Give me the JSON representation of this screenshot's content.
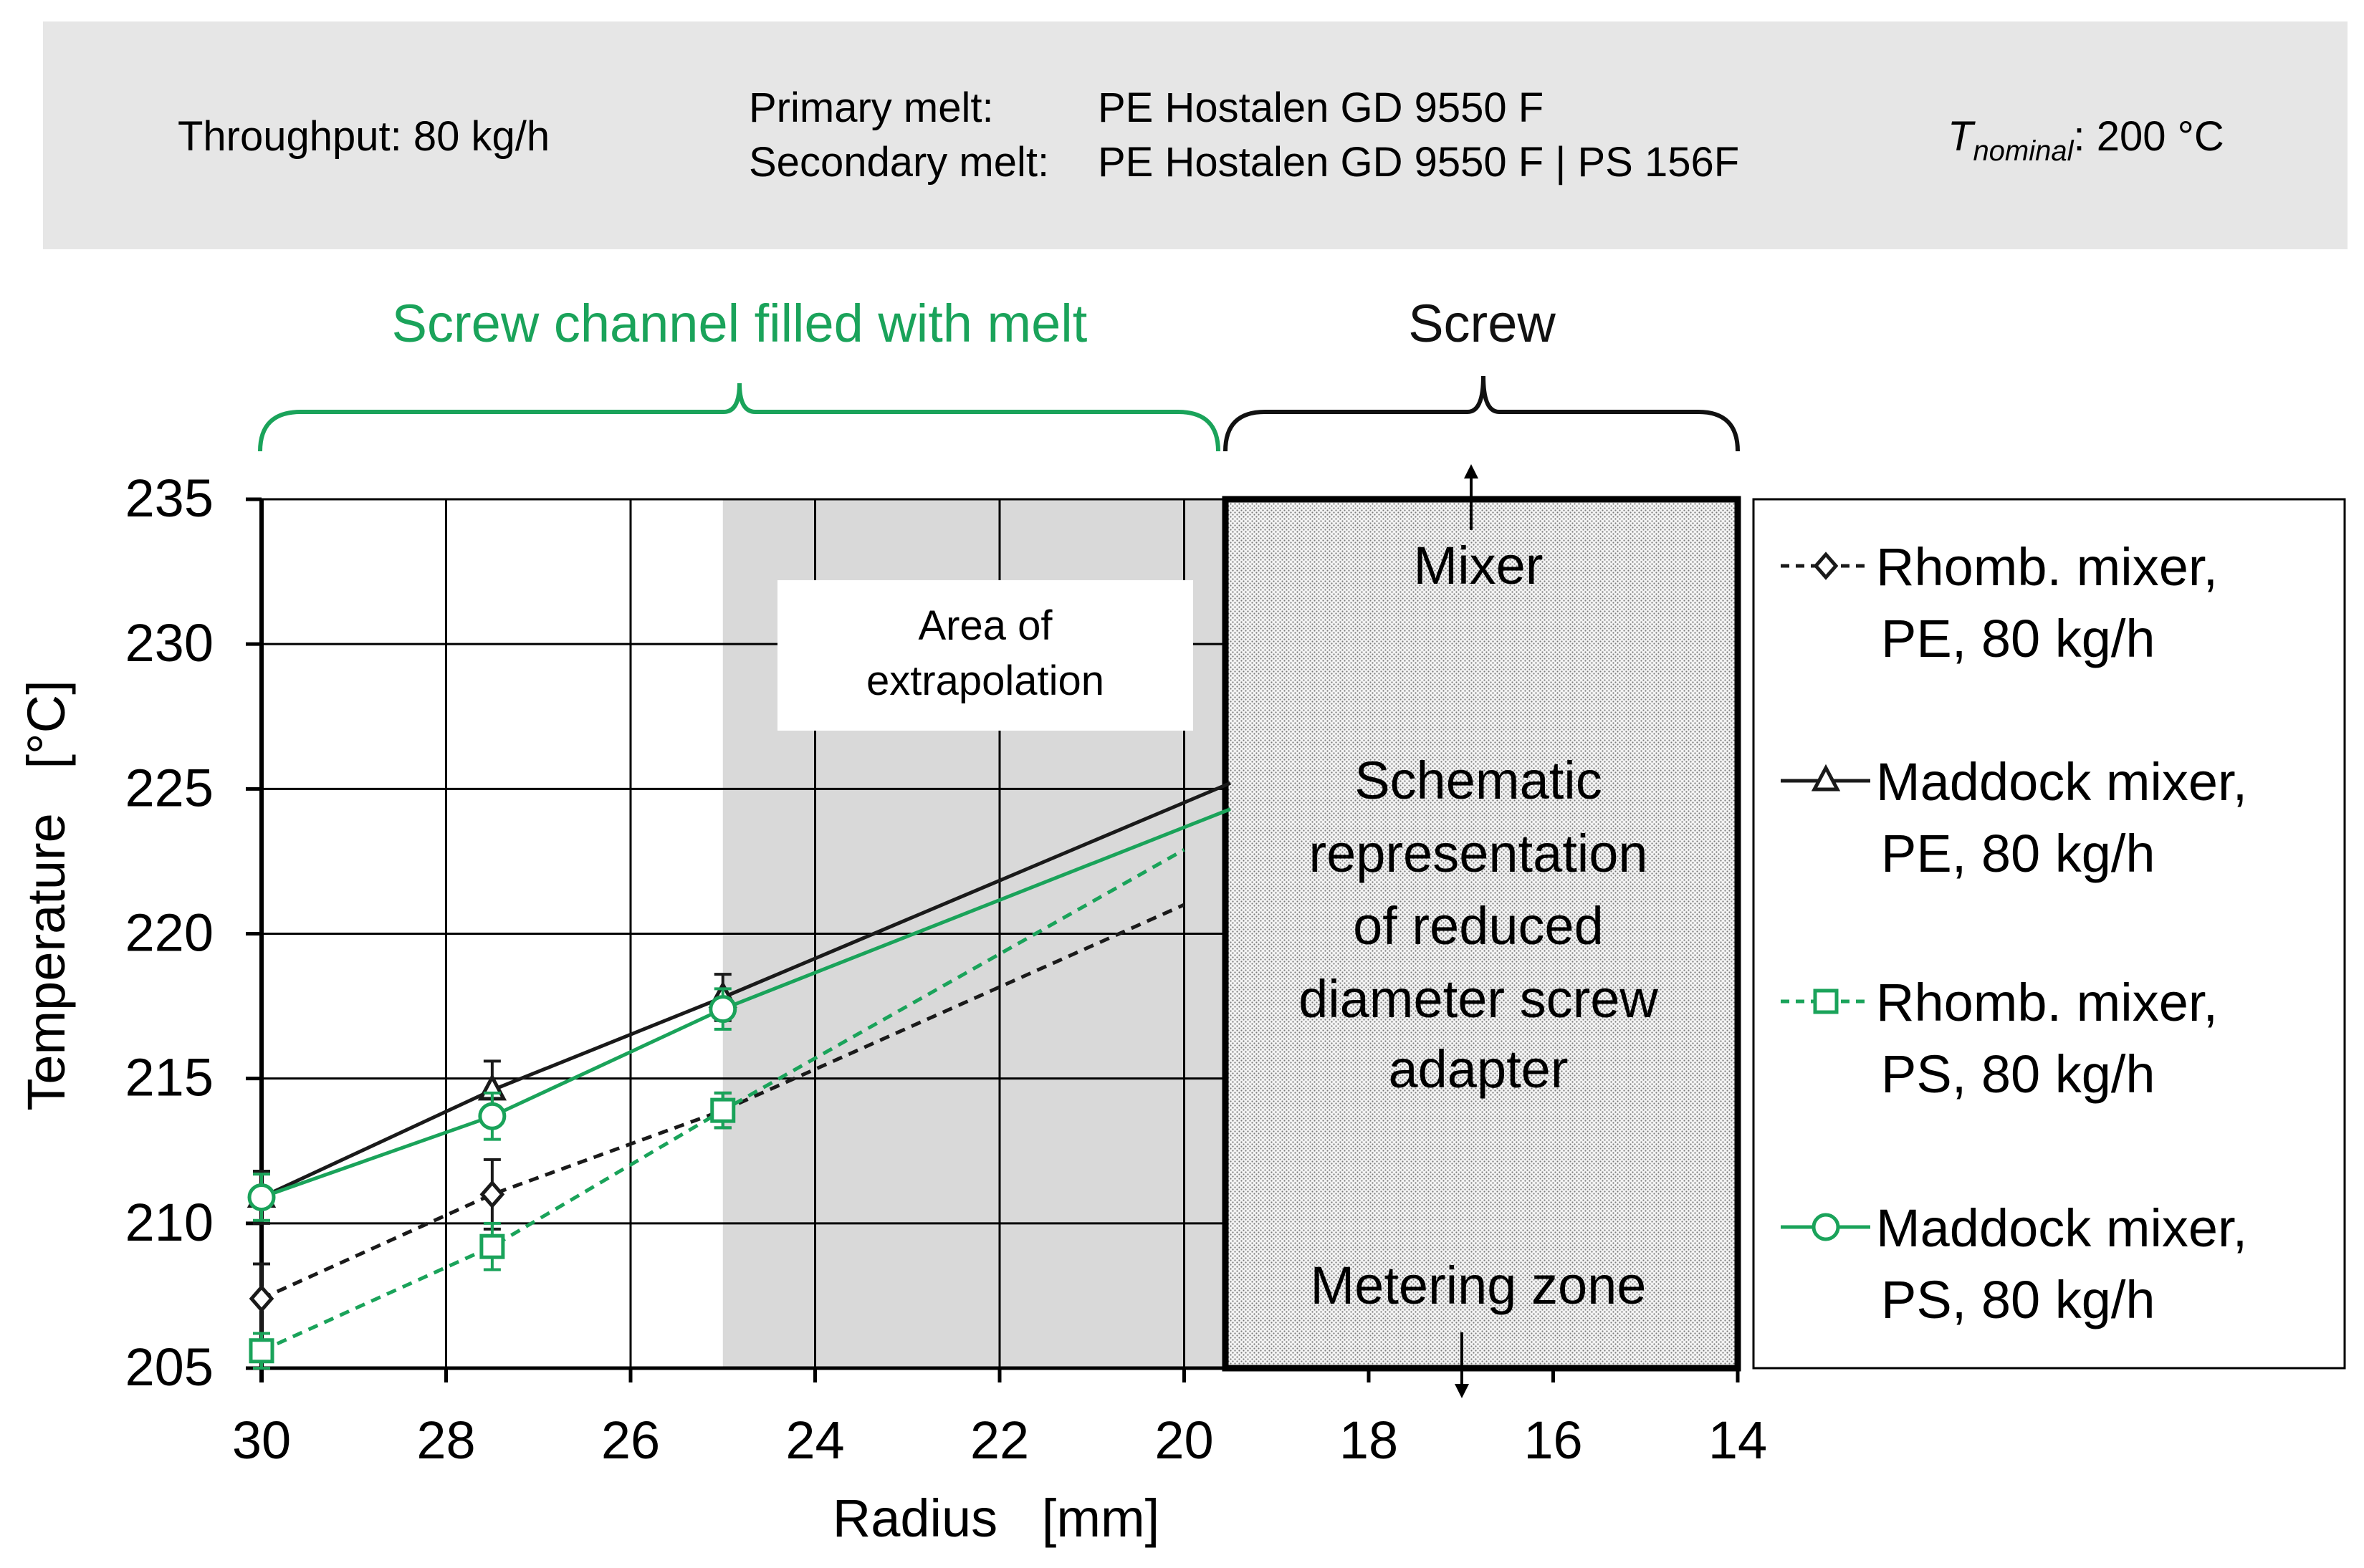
{
  "header": {
    "throughput": "Throughput: 80 kg/h",
    "primary_label": "Primary melt:",
    "primary_value": "PE Hostalen GD 9550 F",
    "secondary_label": "Secondary melt:",
    "secondary_value": "PE Hostalen GD 9550 F | PS 156F",
    "tnominal_symbol": "T",
    "tnominal_subscript": "nominal",
    "tnominal_value": ": 200 °C"
  },
  "regions": {
    "screw_channel_label": "Screw channel filled with melt",
    "screw_label": "Screw",
    "extrapolation_line1": "Area of",
    "extrapolation_line2": "extrapolation",
    "mixer_label": "Mixer",
    "metering_label": "Metering zone",
    "schematic_lines": [
      "Schematic",
      "representation",
      "of reduced",
      "diameter screw",
      "adapter"
    ]
  },
  "colors": {
    "black_series": "#1a1a1a",
    "green_series": "#1aa35a",
    "extrapolation_fill": "#d9d9d9",
    "header_fill": "#e6e6e6"
  },
  "chart_data": {
    "type": "line",
    "xlabel": "Radius   [mm]",
    "ylabel": "Temperature   [°C]",
    "xlim": [
      30,
      14
    ],
    "ylim": [
      205,
      235
    ],
    "x_reversed": true,
    "xticks": [
      30,
      28,
      26,
      24,
      22,
      20,
      18,
      16,
      14
    ],
    "yticks": [
      205,
      210,
      215,
      220,
      225,
      230,
      235
    ],
    "grid": true,
    "legend_position": "right",
    "extrapolation_range": [
      25,
      19.5
    ],
    "screw_range": [
      19.5,
      14
    ],
    "series": [
      {
        "legend_lines": [
          "Rhomb. mixer,",
          "PE, 80 kg/h"
        ],
        "style": "dashed",
        "color": "#1a1a1a",
        "marker": "diamond",
        "x": [
          30,
          27.5,
          25
        ],
        "y": [
          207.4,
          211.0,
          213.9
        ],
        "err": [
          1.2,
          1.2,
          0.6
        ],
        "fit_end": [
          20,
          221.0
        ]
      },
      {
        "legend_lines": [
          "Maddock mixer,",
          "PE, 80 kg/h"
        ],
        "style": "solid",
        "color": "#1a1a1a",
        "marker": "triangle",
        "x": [
          30,
          27.5,
          25
        ],
        "y": [
          210.9,
          214.6,
          217.8
        ],
        "err": [
          0.9,
          1.0,
          0.8
        ],
        "fit_end": [
          19.5,
          225.2
        ]
      },
      {
        "legend_lines": [
          "Rhomb. mixer,",
          "PS, 80 kg/h"
        ],
        "style": "dashed",
        "color": "#1aa35a",
        "marker": "square",
        "x": [
          30,
          27.5,
          25
        ],
        "y": [
          205.6,
          209.2,
          213.9
        ],
        "err": [
          0.6,
          0.8,
          0.6
        ],
        "fit_end": [
          20,
          222.9
        ]
      },
      {
        "legend_lines": [
          "Maddock mixer,",
          "PS, 80 kg/h"
        ],
        "style": "solid",
        "color": "#1aa35a",
        "marker": "circle",
        "x": [
          30,
          27.5,
          25
        ],
        "y": [
          210.9,
          213.7,
          217.4
        ],
        "err": [
          0.8,
          0.8,
          0.7
        ],
        "fit_end": [
          19.5,
          224.3
        ]
      }
    ]
  }
}
